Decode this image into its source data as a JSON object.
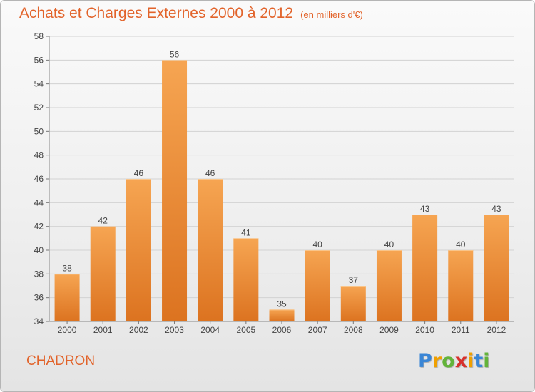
{
  "header": {
    "title": "Achats et Charges Externes 2000 à 2012",
    "unit": "(en milliers d'€)"
  },
  "footer": {
    "commune": "CHADRON",
    "logo_letters": [
      "P",
      "r",
      "o",
      "x",
      "i",
      "t",
      "i"
    ],
    "logo_colors": [
      "#3a86d6",
      "#f0a000",
      "#63b33a",
      "#d8302c",
      "#f0a000",
      "#3a86d6",
      "#63b33a"
    ]
  },
  "colors": {
    "accent": "#e2632a",
    "bar_top": "#f6a552",
    "bar_bottom": "#dc7320"
  },
  "chart_data": {
    "type": "bar",
    "title": "Achats et Charges Externes 2000 à 2012",
    "subtitle": "(en milliers d'€)",
    "categories": [
      "2000",
      "2001",
      "2002",
      "2003",
      "2004",
      "2005",
      "2006",
      "2007",
      "2008",
      "2009",
      "2010",
      "2011",
      "2012"
    ],
    "values": [
      38,
      42,
      46,
      56,
      46,
      41,
      35,
      40,
      37,
      40,
      43,
      40,
      43
    ],
    "ylim": [
      34,
      58
    ],
    "yticks": [
      34,
      36,
      38,
      40,
      42,
      44,
      46,
      48,
      50,
      52,
      54,
      56,
      58
    ],
    "grid": "y-only",
    "data_labels": true
  }
}
